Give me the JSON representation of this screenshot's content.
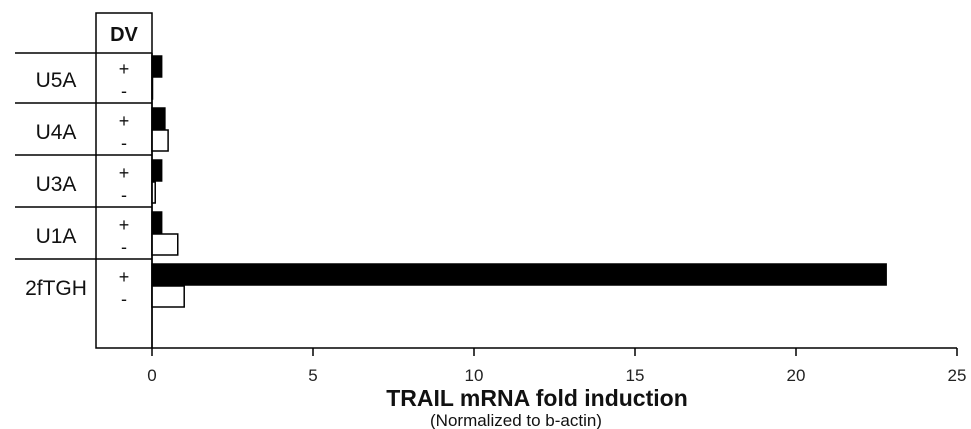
{
  "chart_data": {
    "type": "bar",
    "orientation": "horizontal",
    "column_header": "DV",
    "categories": [
      "U5A",
      "U4A",
      "U3A",
      "U1A",
      "2fTGH"
    ],
    "series": [
      {
        "name": "+",
        "fill": "#000000",
        "values": [
          0.3,
          0.4,
          0.3,
          0.3,
          22.8
        ]
      },
      {
        "name": "-",
        "fill": "#ffffff",
        "values": [
          0.0,
          0.5,
          0.1,
          0.8,
          1.0
        ]
      }
    ],
    "xlim": [
      0,
      25
    ],
    "xticks": [
      0,
      5,
      10,
      15,
      20,
      25
    ],
    "xlabel": "TRAIL mRNA fold induction",
    "xlabel_sub": "(Normalized to b-actin)",
    "grid": false
  }
}
